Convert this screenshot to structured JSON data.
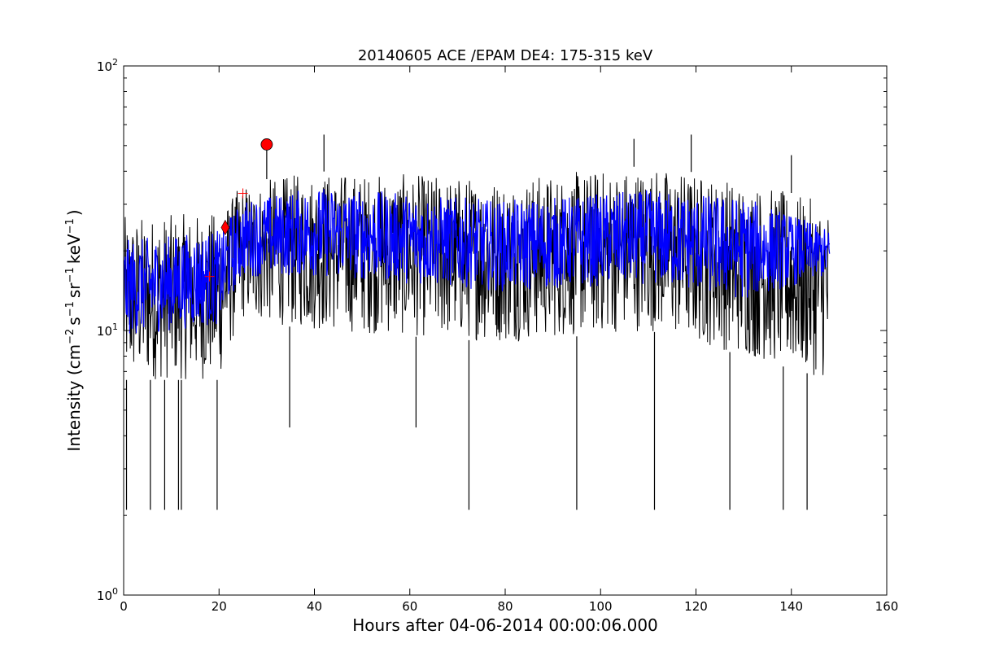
{
  "chart_data": {
    "type": "line",
    "title": "20140605 ACE /EPAM DE4: 175-315 keV",
    "xlabel": "Hours after 04-06-2014 00:00:06.000",
    "ylabel": {
      "prefix": "Intensity (cm",
      "exp1": "−2",
      "mid1": "s",
      "exp2": "−1",
      "mid2": "sr",
      "exp3": "−1",
      "mid3": "keV",
      "exp4": "−1",
      "suffix": ")"
    },
    "xlim": [
      0,
      160
    ],
    "ylim": [
      1,
      100
    ],
    "y_scale": "log",
    "grid": false,
    "x_ticks": [
      {
        "value": 0,
        "label": "0"
      },
      {
        "value": 20,
        "label": "20"
      },
      {
        "value": 40,
        "label": "40"
      },
      {
        "value": 60,
        "label": "60"
      },
      {
        "value": 80,
        "label": "80"
      },
      {
        "value": 100,
        "label": "100"
      },
      {
        "value": 120,
        "label": "120"
      },
      {
        "value": 140,
        "label": "140"
      },
      {
        "value": 160,
        "label": "160"
      }
    ],
    "y_ticks": [
      {
        "value": 1,
        "base": "10",
        "exp": "0"
      },
      {
        "value": 10,
        "base": "10",
        "exp": "1"
      },
      {
        "value": 100,
        "base": "10",
        "exp": "2"
      }
    ],
    "series": [
      {
        "style": "raw",
        "color": "#000000",
        "x_range": [
          0,
          148
        ],
        "level_profile": [
          [
            0,
            15
          ],
          [
            20,
            15
          ],
          [
            25,
            23
          ],
          [
            35,
            24
          ],
          [
            42,
            27
          ],
          [
            60,
            24
          ],
          [
            80,
            22
          ],
          [
            100,
            23
          ],
          [
            110,
            25
          ],
          [
            120,
            24
          ],
          [
            130,
            21
          ],
          [
            148,
            20
          ]
        ],
        "band_profile": [
          [
            0,
            6.5,
            27
          ],
          [
            20,
            6.5,
            28
          ],
          [
            25,
            11,
            36
          ],
          [
            40,
            10,
            40
          ],
          [
            60,
            9.5,
            39
          ],
          [
            80,
            9,
            38
          ],
          [
            110,
            10,
            42
          ],
          [
            130,
            8,
            37
          ],
          [
            148,
            6.5,
            30
          ]
        ],
        "spikes_up": [
          {
            "x": 30,
            "y": 50
          },
          {
            "x": 42,
            "y": 55
          },
          {
            "x": 107,
            "y": 53
          },
          {
            "x": 119,
            "y": 55
          },
          {
            "x": 140,
            "y": 46
          }
        ],
        "spikes_down": [
          {
            "x": 0.6,
            "y": 2.1
          },
          {
            "x": 5.6,
            "y": 2.1
          },
          {
            "x": 8.6,
            "y": 2.1
          },
          {
            "x": 11.5,
            "y": 2.1
          },
          {
            "x": 12.1,
            "y": 2.1
          },
          {
            "x": 19.6,
            "y": 2.1
          },
          {
            "x": 34.8,
            "y": 4.3
          },
          {
            "x": 61.3,
            "y": 4.3
          },
          {
            "x": 72.4,
            "y": 2.1
          },
          {
            "x": 95,
            "y": 2.1
          },
          {
            "x": 111.3,
            "y": 2.1
          },
          {
            "x": 127.1,
            "y": 2.1
          },
          {
            "x": 138.3,
            "y": 2.1
          },
          {
            "x": 143.3,
            "y": 2.1
          }
        ]
      },
      {
        "style": "smoothed",
        "color": "#0000ff",
        "x_range": [
          0,
          148
        ],
        "band_profile": [
          [
            0,
            9.5,
            22
          ],
          [
            20,
            10.5,
            24
          ],
          [
            25,
            16,
            31
          ],
          [
            40,
            16,
            35
          ],
          [
            60,
            15,
            33
          ],
          [
            80,
            14,
            31
          ],
          [
            110,
            15,
            34
          ],
          [
            130,
            13,
            32
          ],
          [
            148,
            16,
            24
          ]
        ]
      }
    ],
    "markers": [
      {
        "shape": "plus",
        "x": 18,
        "y": 16,
        "color": "#ff0000"
      },
      {
        "shape": "diamond",
        "x": 21.3,
        "y": 24.5,
        "color": "#ff0000"
      },
      {
        "shape": "plus",
        "x": 25,
        "y": 33,
        "color": "#ff0000"
      },
      {
        "shape": "circle",
        "x": 30,
        "y": 50.5,
        "color": "#ff0000"
      }
    ]
  }
}
